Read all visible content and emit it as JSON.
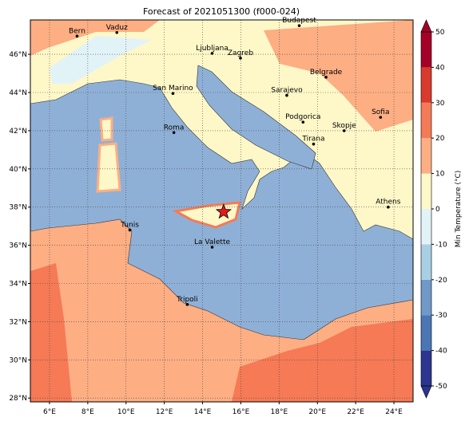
{
  "title": "Forecast of 2021051300 (f000-024)",
  "map": {
    "lonlim": [
      5,
      25
    ],
    "latlim": [
      27.8,
      47.8
    ],
    "lonticks": [
      {
        "value": 6,
        "label": "6°E"
      },
      {
        "value": 8,
        "label": "8°E"
      },
      {
        "value": 10,
        "label": "10°E"
      },
      {
        "value": 12,
        "label": "12°E"
      },
      {
        "value": 14,
        "label": "14°E"
      },
      {
        "value": 16,
        "label": "16°E"
      },
      {
        "value": 18,
        "label": "18°E"
      },
      {
        "value": 20,
        "label": "20°E"
      },
      {
        "value": 22,
        "label": "22°E"
      },
      {
        "value": 24,
        "label": "24°E"
      }
    ],
    "latticks": [
      {
        "value": 28,
        "label": "28°N"
      },
      {
        "value": 30,
        "label": "30°N"
      },
      {
        "value": 32,
        "label": "32°N"
      },
      {
        "value": 34,
        "label": "34°N"
      },
      {
        "value": 36,
        "label": "36°N"
      },
      {
        "value": 38,
        "label": "38°N"
      },
      {
        "value": 40,
        "label": "40°N"
      },
      {
        "value": 42,
        "label": "42°N"
      },
      {
        "value": 44,
        "label": "44°N"
      },
      {
        "value": 46,
        "label": "46°N"
      }
    ],
    "marker": {
      "lon": 15.1,
      "lat": 37.75,
      "color": "#e31a1c"
    }
  },
  "cities": [
    {
      "name": "Bern",
      "lon": 7.44,
      "lat": 46.95
    },
    {
      "name": "Vaduz",
      "lon": 9.52,
      "lat": 47.14
    },
    {
      "name": "Budapest",
      "lon": 19.05,
      "lat": 47.5
    },
    {
      "name": "Ljubljana",
      "lon": 14.5,
      "lat": 46.05
    },
    {
      "name": "Zagreb",
      "lon": 15.98,
      "lat": 45.8
    },
    {
      "name": "Belgrade",
      "lon": 20.45,
      "lat": 44.8
    },
    {
      "name": "San Marino",
      "lon": 12.45,
      "lat": 43.95
    },
    {
      "name": "Sarajevo",
      "lon": 18.4,
      "lat": 43.85
    },
    {
      "name": "Podgorica",
      "lon": 19.25,
      "lat": 42.45
    },
    {
      "name": "Sofia",
      "lon": 23.3,
      "lat": 42.7
    },
    {
      "name": "Skopje",
      "lon": 21.4,
      "lat": 42.0
    },
    {
      "name": "Roma",
      "lon": 12.5,
      "lat": 41.9
    },
    {
      "name": "Tirana",
      "lon": 19.8,
      "lat": 41.3
    },
    {
      "name": "Athens",
      "lon": 23.7,
      "lat": 38.0
    },
    {
      "name": "Tunis",
      "lon": 10.2,
      "lat": 36.8
    },
    {
      "name": "La Valette",
      "lon": 14.5,
      "lat": 35.9
    },
    {
      "name": "Tripoli",
      "lon": 13.2,
      "lat": 32.9
    }
  ],
  "colorbar": {
    "label": "Min Temperature (°C)",
    "lim": [
      -50,
      50
    ],
    "ticks": [
      -50,
      -40,
      -30,
      -20,
      -10,
      0,
      10,
      20,
      30,
      40,
      50
    ],
    "colors": [
      "#2c3590",
      "#4a76b5",
      "#7099c9",
      "#a9cfe4",
      "#e2f3f8",
      "#fef7c8",
      "#fdae83",
      "#f57a55",
      "#d93a2c",
      "#a50026"
    ]
  }
}
